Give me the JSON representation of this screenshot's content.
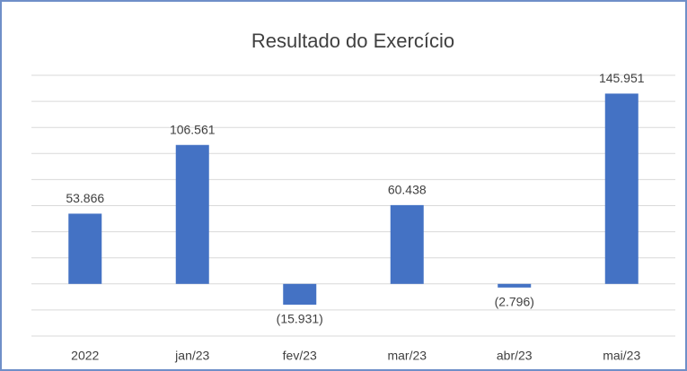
{
  "chart_data": {
    "type": "bar",
    "title": "Resultado do Exercício",
    "categories": [
      "2022",
      "jan/23",
      "fev/23",
      "mar/23",
      "abr/23",
      "mai/23"
    ],
    "values": [
      53866,
      106561,
      -15931,
      60438,
      -2796,
      145951
    ],
    "value_labels": [
      "53.866",
      "106.561",
      "(15.931)",
      "60.438",
      "(2.796)",
      "145.951"
    ],
    "color": "#4472c4",
    "ylim": [
      -40000,
      160000
    ],
    "yticks": [
      -40000,
      -20000,
      0,
      20000,
      40000,
      60000,
      80000,
      100000,
      120000,
      140000,
      160000
    ],
    "grid": true
  }
}
